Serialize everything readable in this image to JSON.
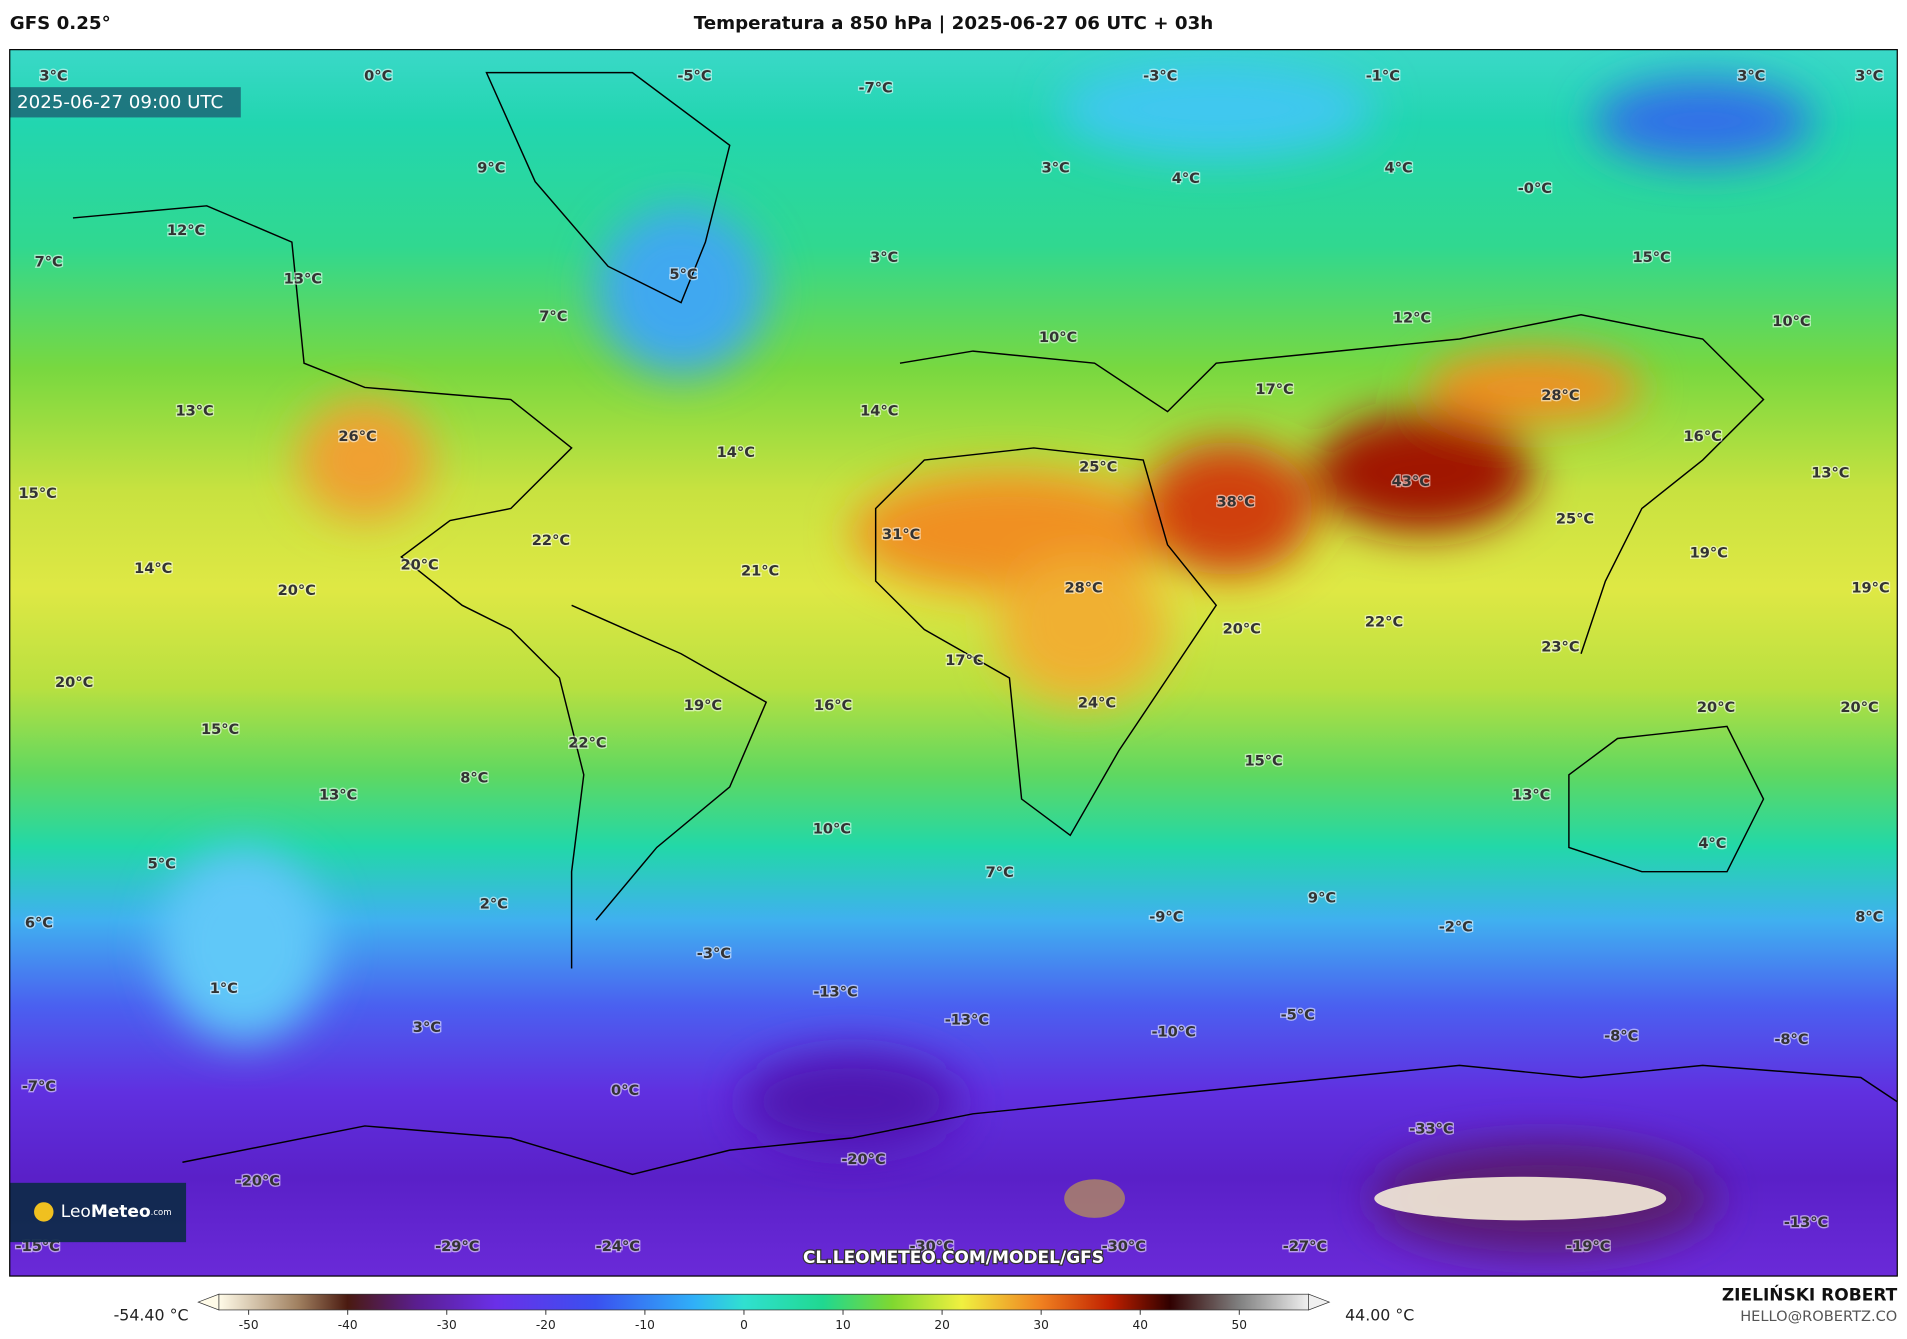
{
  "header": {
    "model": "GFS 0.25°",
    "title": "Temperatura a 850 hPa | 2025-06-27 06 UTC + 03h"
  },
  "map": {
    "valid_time": "2025-06-27 09:00 UTC",
    "url": "CL.LEOMETEO.COM/MODEL/GFS",
    "labels": [
      "3°C",
      "0°C",
      "-5°C",
      "-7°C",
      "-3°C",
      "-1°C",
      "3°C",
      "3°C",
      "9°C",
      "3°C",
      "4°C",
      "4°C",
      "-0°C",
      "12°C",
      "7°C",
      "13°C",
      "5°C",
      "3°C",
      "15°C",
      "7°C",
      "12°C",
      "10°C",
      "10°C",
      "13°C",
      "14°C",
      "17°C",
      "28°C",
      "26°C",
      "16°C",
      "14°C",
      "25°C",
      "13°C",
      "15°C",
      "38°C",
      "43°C",
      "31°C",
      "22°C",
      "25°C",
      "14°C",
      "20°C",
      "21°C",
      "19°C",
      "19°C",
      "20°C",
      "28°C",
      "20°C",
      "22°C",
      "23°C",
      "17°C",
      "20°C",
      "19°C",
      "16°C",
      "24°C",
      "20°C",
      "20°C",
      "15°C",
      "22°C",
      "15°C",
      "8°C",
      "13°C",
      "13°C",
      "10°C",
      "4°C",
      "5°C",
      "7°C",
      "2°C",
      "9°C",
      "-9°C",
      "6°C",
      "-2°C",
      "8°C",
      "-3°C",
      "1°C",
      "-13°C",
      "-13°C",
      "3°C",
      "-5°C",
      "-10°C",
      "-8°C",
      "-8°C",
      "-7°C",
      "0°C",
      "-33°C",
      "-20°C",
      "-20°C",
      "-15°C",
      "-29°C",
      "-24°C",
      "-30°C",
      "-30°C",
      "-27°C",
      "-19°C",
      "-13°C"
    ]
  },
  "logo": {
    "part1": "Leo",
    "part2": "Meteo",
    "part3": ".com"
  },
  "colorbar": {
    "min_label": "-54.40 °C",
    "max_label": "44.00 °C",
    "lim": [
      -53,
      57
    ],
    "ticks": [
      -50,
      -40,
      -30,
      -20,
      -10,
      0,
      10,
      20,
      30,
      40,
      50
    ],
    "stops": [
      {
        "value": -53,
        "color": "#fffbe8"
      },
      {
        "value": -45,
        "color": "#a08060"
      },
      {
        "value": -40,
        "color": "#4a1a10"
      },
      {
        "value": -33,
        "color": "#5a1e90"
      },
      {
        "value": -25,
        "color": "#6a30e8"
      },
      {
        "value": -15,
        "color": "#3a50f0"
      },
      {
        "value": -5,
        "color": "#30b0f8"
      },
      {
        "value": 0,
        "color": "#30e0d0"
      },
      {
        "value": 8,
        "color": "#20d890"
      },
      {
        "value": 15,
        "color": "#80d830"
      },
      {
        "value": 22,
        "color": "#f0f040"
      },
      {
        "value": 30,
        "color": "#f08020"
      },
      {
        "value": 37,
        "color": "#c02000"
      },
      {
        "value": 43,
        "color": "#300000"
      },
      {
        "value": 50,
        "color": "#808080"
      },
      {
        "value": 57,
        "color": "#f0f0f0"
      }
    ]
  },
  "credits": {
    "author": "ZIELIŃSKI ROBERT",
    "email": "HELLO@ROBERTZ.CO"
  }
}
